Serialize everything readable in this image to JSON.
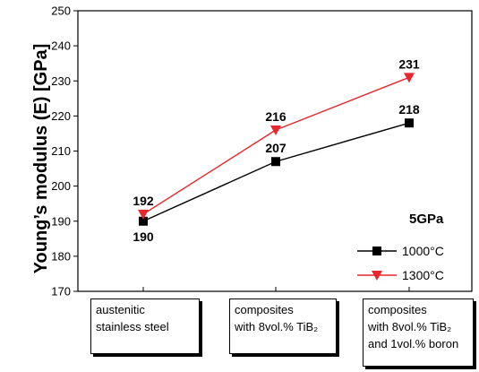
{
  "chart_data": {
    "type": "line",
    "categories": [
      [
        "austenitic",
        "stainless steel"
      ],
      [
        "composites",
        "with 8vol.% TiB₂"
      ],
      [
        "composites",
        "with 8vol.% TiB₂",
        "and 1vol.% boron"
      ]
    ],
    "ylabel": "Young’s modulus (E) [GPa]",
    "ylim": [
      170,
      250
    ],
    "yticks": [
      170,
      180,
      190,
      200,
      210,
      220,
      230,
      240,
      250
    ],
    "legend_title": "5GPa",
    "legend_position": "bottom-right",
    "series": [
      {
        "name": "1000°C",
        "values": [
          190,
          207,
          218
        ],
        "color": "#000000",
        "marker": "square",
        "labels": [
          "190",
          "207",
          "218"
        ]
      },
      {
        "name": "1300°C",
        "values": [
          192,
          216,
          231
        ],
        "color": "#e8262b",
        "marker": "triangle-down",
        "labels": [
          "192",
          "216",
          "231"
        ]
      }
    ]
  }
}
